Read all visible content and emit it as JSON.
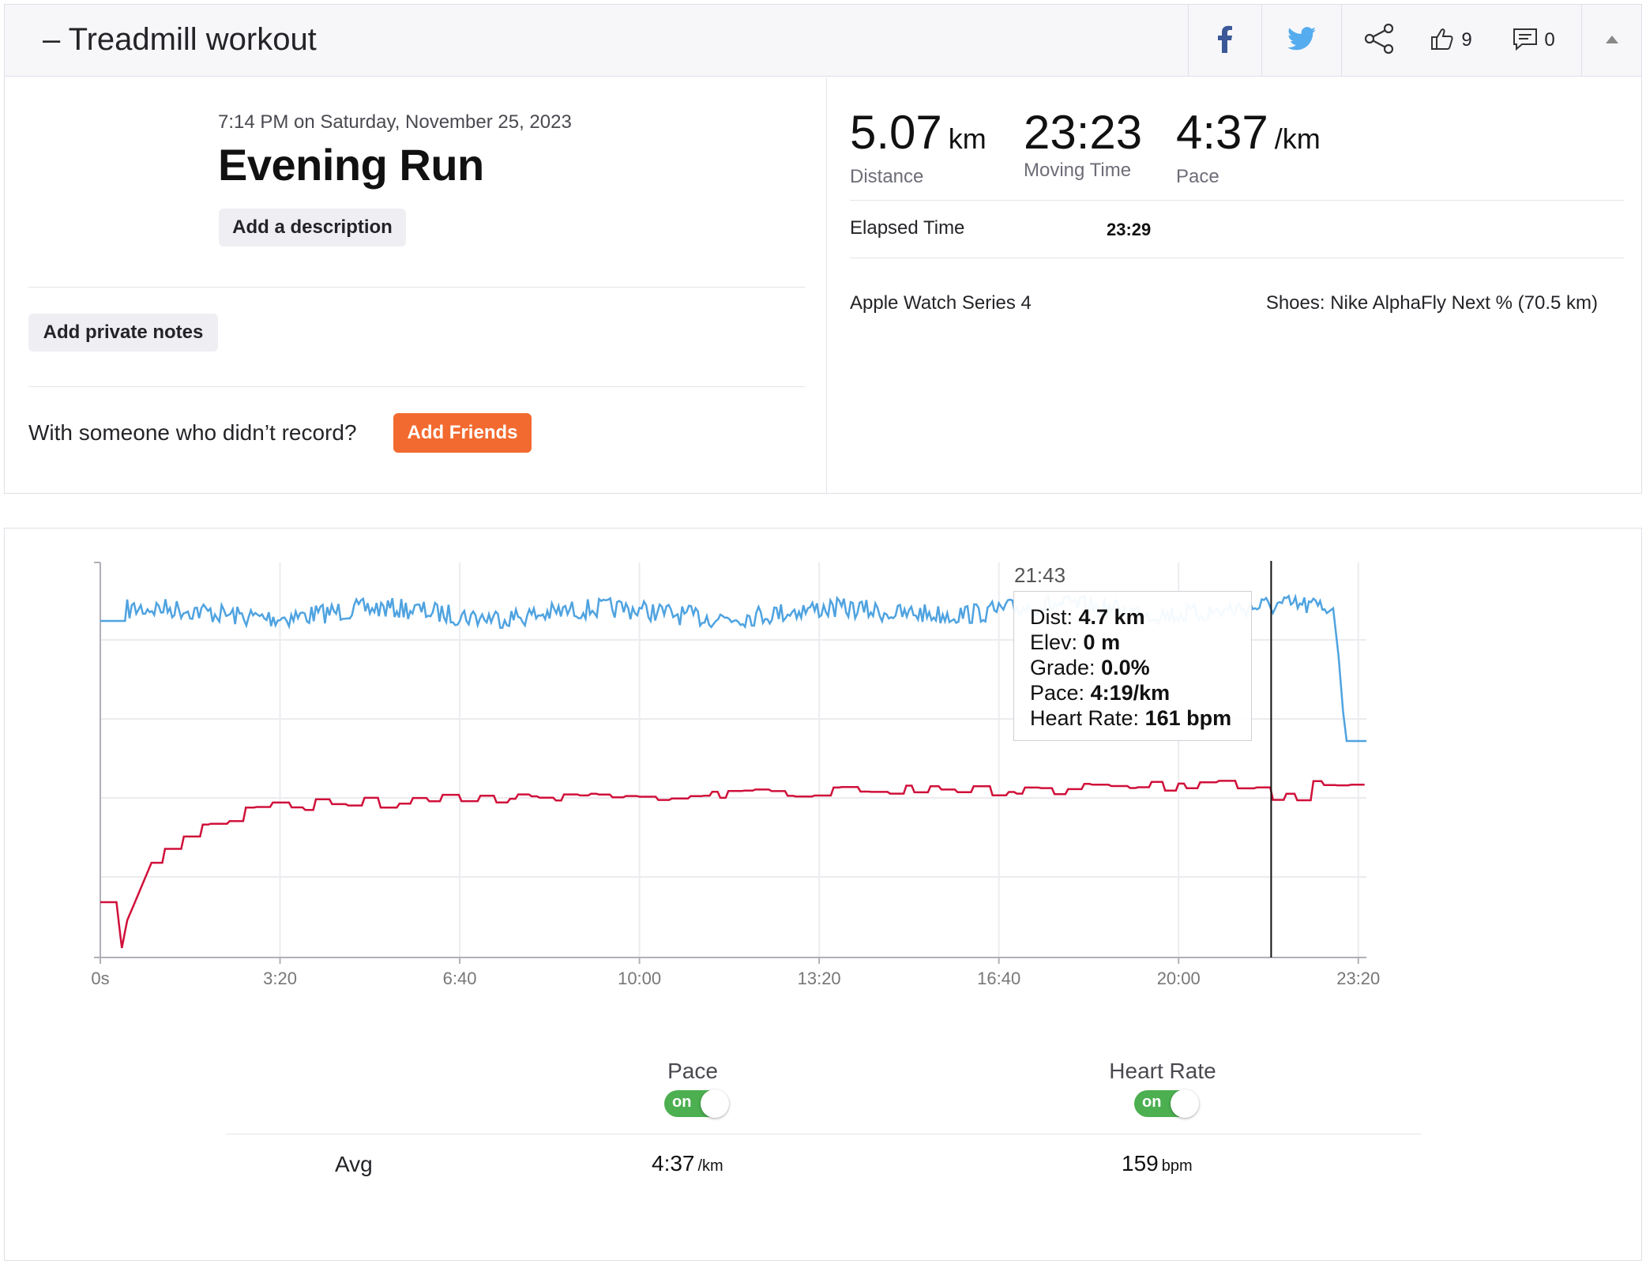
{
  "header": {
    "title": "– Treadmill workout",
    "kudos_count": "9",
    "comment_count": "0",
    "icons": [
      "facebook-icon",
      "twitter-icon",
      "share-icon",
      "thumbs-up-icon",
      "comment-icon",
      "collapse-caret-icon"
    ]
  },
  "activity": {
    "datetime": "7:14 PM on Saturday, November 25, 2023",
    "name": "Evening Run",
    "add_description": "Add a description",
    "add_private_notes": "Add private notes",
    "friends_prompt": "With someone who didn’t record?",
    "add_friends": "Add Friends"
  },
  "stats": {
    "distance": {
      "value": "5.07",
      "unit": "km",
      "label": "Distance"
    },
    "moving_time": {
      "value": "23:23",
      "label": "Moving Time"
    },
    "pace": {
      "value": "4:37",
      "unit": "/km",
      "label": "Pace"
    },
    "elapsed_label": "Elapsed Time",
    "elapsed_value": "23:29",
    "device": "Apple Watch Series 4",
    "shoes": "Shoes: Nike AlphaFly Next % (70.5 km)"
  },
  "chart_data": {
    "type": "line",
    "x_unit": "seconds",
    "xlim": [
      0,
      1409
    ],
    "x_ticks": [
      0,
      200,
      400,
      600,
      800,
      1000,
      1200,
      1400
    ],
    "x_tick_labels": [
      "0s",
      "3:20",
      "6:40",
      "10:00",
      "13:20",
      "16:40",
      "20:00",
      "23:20"
    ],
    "cursor_x": 1303,
    "series": [
      {
        "name": "Pace",
        "color": "#4fa3e0"
      },
      {
        "name": "Heart Rate",
        "color": "#d0103a"
      }
    ],
    "tooltip": {
      "time": "21:43",
      "rows": [
        {
          "label": "Dist:",
          "value": "4.7 km"
        },
        {
          "label": "Elev:",
          "value": "0 m"
        },
        {
          "label": "Grade:",
          "value": "0.0%"
        },
        {
          "label": "Pace:",
          "value": "4:19/km"
        },
        {
          "label": "Heart Rate:",
          "value": "161 bpm"
        }
      ]
    }
  },
  "controls": {
    "pace_label": "Pace",
    "hr_label": "Heart Rate",
    "toggle_on": "on",
    "avg_label": "Avg",
    "avg_pace": "4:37",
    "avg_pace_unit": "/km",
    "avg_hr": "159",
    "avg_hr_unit": "bpm"
  }
}
